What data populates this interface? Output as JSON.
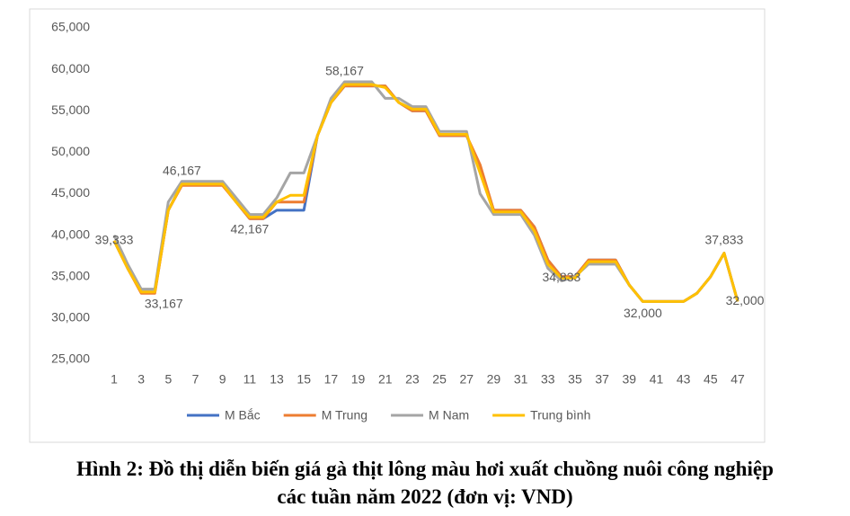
{
  "chart_data": {
    "type": "line",
    "categories": [
      "1",
      null,
      "3",
      null,
      "5",
      null,
      "7",
      null,
      "9",
      null,
      "11",
      null,
      "13",
      null,
      "15",
      null,
      "17",
      null,
      "19",
      null,
      "21",
      null,
      "23",
      null,
      "25",
      null,
      "27",
      null,
      "29",
      null,
      "31",
      null,
      "33",
      null,
      "35",
      null,
      "37",
      null,
      "39",
      null,
      "41",
      null,
      "43",
      null,
      "45",
      null,
      "47"
    ],
    "ylim": [
      25000,
      65000
    ],
    "yticks": [
      {
        "value": 25000,
        "label": "25,000"
      },
      {
        "value": 30000,
        "label": "30,000"
      },
      {
        "value": 35000,
        "label": "35,000"
      },
      {
        "value": 40000,
        "label": "40,000"
      },
      {
        "value": 45000,
        "label": "45,000"
      },
      {
        "value": 50000,
        "label": "50,000"
      },
      {
        "value": 55000,
        "label": "55,000"
      },
      {
        "value": 60000,
        "label": "60,000"
      },
      {
        "value": 65000,
        "label": "65,000"
      }
    ],
    "grid": false,
    "legend": "bottom",
    "series": [
      {
        "name": "M Bắc",
        "color": "#4472c4",
        "values": [
          39333,
          36000,
          33167,
          33167,
          43000,
          46167,
          46167,
          46167,
          46167,
          44000,
          42000,
          42000,
          43000,
          43000,
          43000,
          52000,
          56000,
          58000,
          58000,
          58000,
          58000,
          56000,
          55000,
          55000,
          52000,
          52000,
          52000,
          48000,
          43000,
          43000,
          43000,
          41000,
          37000,
          35000,
          35000,
          37000,
          37000,
          37000,
          34000,
          32000,
          32000,
          32000,
          32000,
          33000,
          35000,
          37833,
          32000
        ]
      },
      {
        "name": "M Trung",
        "color": "#ed7d31",
        "values": [
          39333,
          36000,
          33000,
          33000,
          43000,
          46000,
          46000,
          46000,
          46000,
          44000,
          42000,
          42000,
          44000,
          44000,
          44000,
          52000,
          56000,
          58000,
          58000,
          58000,
          58000,
          56000,
          55000,
          55000,
          52000,
          52000,
          52000,
          48500,
          43000,
          43000,
          43000,
          41000,
          37000,
          35000,
          35000,
          37000,
          37000,
          37000,
          34000,
          32000,
          32000,
          32000,
          32000,
          33000,
          35000,
          37833,
          32000
        ]
      },
      {
        "name": "M Nam",
        "color": "#a5a5a5",
        "values": [
          40000,
          36500,
          33500,
          33500,
          44000,
          46500,
          46500,
          46500,
          46500,
          44500,
          42500,
          42500,
          44500,
          47500,
          47500,
          52000,
          56500,
          58500,
          58500,
          58500,
          56500,
          56500,
          55500,
          55500,
          52500,
          52500,
          52500,
          45000,
          42500,
          42500,
          42500,
          40000,
          36000,
          34500,
          35000,
          36500,
          36500,
          36500,
          34000,
          32000,
          32000,
          32000,
          32000,
          33000,
          35000,
          37833,
          32000
        ]
      },
      {
        "name": "Trung bình",
        "color": "#ffc000",
        "values": [
          39333,
          36000,
          33167,
          33167,
          43000,
          46167,
          46167,
          46167,
          46167,
          44000,
          42167,
          42167,
          44000,
          44800,
          44800,
          52000,
          56000,
          58167,
          58167,
          58167,
          57800,
          56000,
          55200,
          55200,
          52167,
          52167,
          52167,
          47500,
          42800,
          42800,
          42800,
          40500,
          36500,
          34833,
          34833,
          36800,
          36800,
          36800,
          34000,
          32000,
          32000,
          32000,
          32000,
          33000,
          35000,
          37833,
          32000
        ],
        "value_labels": [
          "39,333",
          null,
          null,
          "33,167",
          null,
          "46,167",
          null,
          null,
          null,
          null,
          "42,167",
          null,
          null,
          null,
          null,
          null,
          null,
          "58,167",
          null,
          null,
          null,
          null,
          null,
          null,
          null,
          null,
          null,
          null,
          null,
          null,
          null,
          null,
          null,
          "34,833",
          null,
          null,
          null,
          null,
          null,
          "32,000",
          null,
          null,
          null,
          null,
          null,
          "37,833",
          "32,000"
        ]
      }
    ]
  },
  "caption": "Hình 2: Đồ thị diễn biến giá gà thịt lông màu hơi xuất chuồng nuôi công nghiệp các tuần năm 2022 (đơn vị: VND)"
}
